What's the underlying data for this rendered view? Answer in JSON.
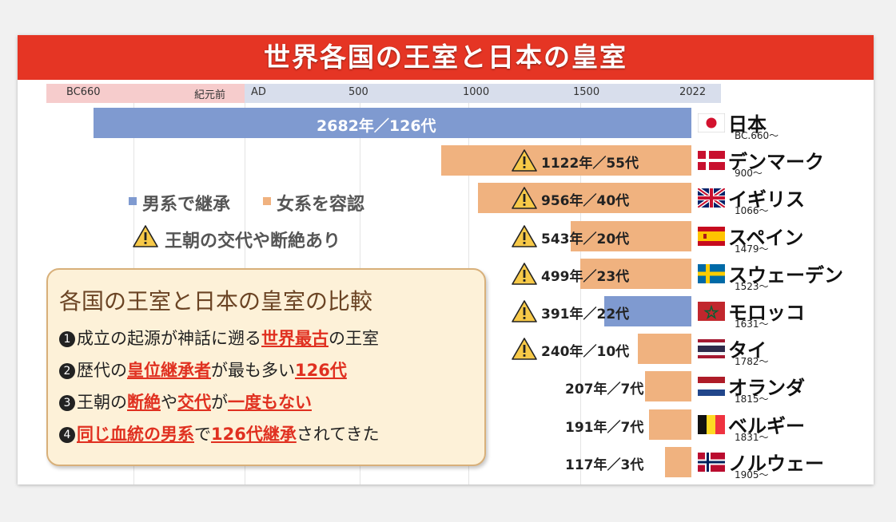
{
  "title": "世界各国の王室と日本の皇室",
  "axis": {
    "bc_label": "BC660",
    "bc_suffix": "紀元前",
    "ticks": [
      "AD",
      "500",
      "1000",
      "1500",
      "2022"
    ]
  },
  "legend": {
    "male_line": "男系で継承",
    "female_line": "女系を容認",
    "dynasty_change": "王朝の交代や断絶あり"
  },
  "colors": {
    "male": "#7f9ad0",
    "female": "#f0b27f",
    "title": "#e53524",
    "highlight": "#e03020"
  },
  "comparison": {
    "title": "各国の王室と日本の皇室の比較",
    "items": [
      {
        "num": "1",
        "a": "成立の起源が神話に遡る",
        "h1": "世界最古",
        "b": "の王室"
      },
      {
        "num": "2",
        "a": "歴代の",
        "h1": "皇位継承者",
        "b": "が最も多い",
        "h2": "126代"
      },
      {
        "num": "3",
        "a": "王朝の",
        "h1": "断絶",
        "b": "や",
        "h2": "交代",
        "c": "が",
        "h3": "一度もない"
      },
      {
        "num": "4",
        "h1": "同じ血統の男系",
        "b": "で",
        "h2": "126代継承",
        "c": "されてきた"
      }
    ]
  },
  "chart_data": {
    "type": "bar",
    "title": "世界各国の王室と日本の皇室",
    "x_axis_end": 2022,
    "x_ticks": [
      "BC660",
      "紀元前",
      "AD",
      "500",
      "1000",
      "1500",
      "2022"
    ],
    "rows": [
      {
        "country": "日本",
        "start_label": "BC.660～",
        "start_year": -660,
        "label": "2682年／126代",
        "years": 2682,
        "generations": 126,
        "segments": [
          "male"
        ],
        "warning": false,
        "flag": "jp"
      },
      {
        "country": "デンマーク",
        "start_label": "900～",
        "start_year": 900,
        "label": "1122年／55代",
        "years": 1122,
        "generations": 55,
        "segments": [
          "female"
        ],
        "warning": true,
        "flag": "dk"
      },
      {
        "country": "イギリス",
        "start_label": "1066～",
        "start_year": 1066,
        "label": "956年／40代",
        "years": 956,
        "generations": 40,
        "segments": [
          "female"
        ],
        "warning": true,
        "flag": "gb"
      },
      {
        "country": "スペイン",
        "start_label": "1479～",
        "start_year": 1479,
        "label": "543年／20代",
        "years": 543,
        "generations": 20,
        "segments": [
          "female"
        ],
        "warning": true,
        "flag": "es"
      },
      {
        "country": "スウェーデン",
        "start_label": "1523～",
        "start_year": 1523,
        "label": "499年／23代",
        "years": 499,
        "generations": 23,
        "segments": [
          "female"
        ],
        "warning": true,
        "flag": "se"
      },
      {
        "country": "モロッコ",
        "start_label": "1631～",
        "start_year": 1631,
        "label": "391年／22代",
        "years": 391,
        "generations": 22,
        "segments": [
          "male"
        ],
        "warning": true,
        "flag": "ma"
      },
      {
        "country": "タイ",
        "start_label": "1782～",
        "start_year": 1782,
        "label": "240年／10代",
        "years": 240,
        "generations": 10,
        "segments": [
          "female"
        ],
        "warning": true,
        "flag": "th"
      },
      {
        "country": "オランダ",
        "start_label": "1815～",
        "start_year": 1815,
        "label": "207年／7代",
        "years": 207,
        "generations": 7,
        "segments": [
          "female"
        ],
        "warning": false,
        "flag": "nl"
      },
      {
        "country": "ベルギー",
        "start_label": "1831～",
        "start_year": 1831,
        "label": "191年／7代",
        "years": 191,
        "generations": 7,
        "segments": [
          "female"
        ],
        "warning": false,
        "flag": "be"
      },
      {
        "country": "ノルウェー",
        "start_label": "1905～",
        "start_year": 1905,
        "label": "117年／3代",
        "years": 117,
        "generations": 3,
        "segments": [
          "female"
        ],
        "warning": false,
        "flag": "no"
      }
    ]
  }
}
